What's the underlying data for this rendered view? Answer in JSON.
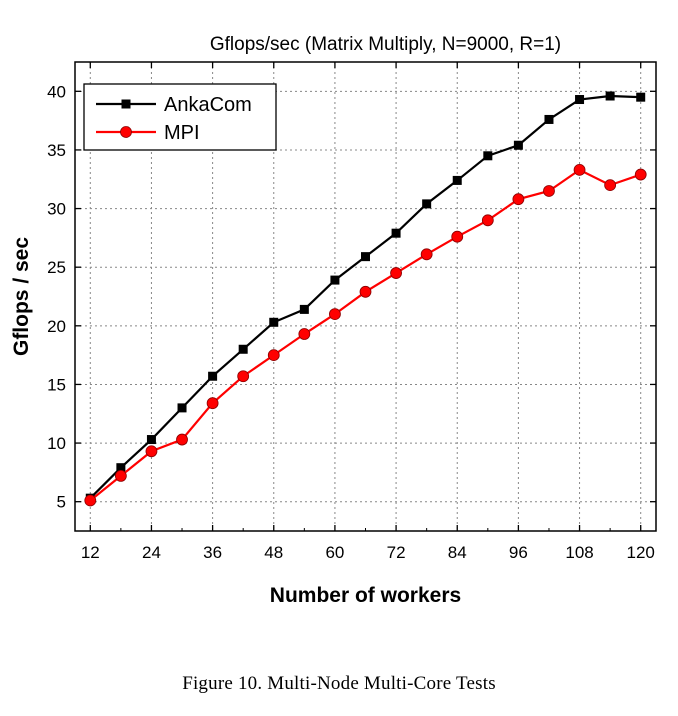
{
  "chart_data": {
    "type": "line",
    "title": "Gflops/sec (Matrix Multiply, N=9000, R=1)",
    "xlabel": "Number of workers",
    "ylabel": "Gflops / sec",
    "xlim": [
      9,
      123
    ],
    "ylim": [
      2.5,
      42.5
    ],
    "xticks": [
      12,
      24,
      36,
      48,
      60,
      72,
      84,
      96,
      108,
      120
    ],
    "yticks": [
      5,
      10,
      15,
      20,
      25,
      30,
      35,
      40
    ],
    "grid": true,
    "legend_position": "top-left",
    "x": [
      12,
      18,
      24,
      30,
      36,
      42,
      48,
      54,
      60,
      66,
      72,
      78,
      84,
      90,
      96,
      102,
      108,
      114,
      120
    ],
    "series": [
      {
        "name": "AnkaCom",
        "color": "#000000",
        "marker": "square",
        "values": [
          5.3,
          7.9,
          10.3,
          13.0,
          15.7,
          18.0,
          20.3,
          21.4,
          23.9,
          25.9,
          27.9,
          30.4,
          32.4,
          34.5,
          35.4,
          37.6,
          39.3,
          39.6,
          39.5
        ]
      },
      {
        "name": "MPI",
        "color": "#ff0000",
        "marker": "circle",
        "values": [
          5.1,
          7.2,
          9.3,
          10.3,
          13.4,
          15.7,
          17.5,
          19.3,
          21.0,
          22.9,
          24.5,
          26.1,
          27.6,
          29.0,
          30.8,
          31.5,
          33.3,
          32.0,
          32.9
        ]
      }
    ]
  },
  "caption": "Figure 10.  Multi-Node Multi-Core Tests"
}
